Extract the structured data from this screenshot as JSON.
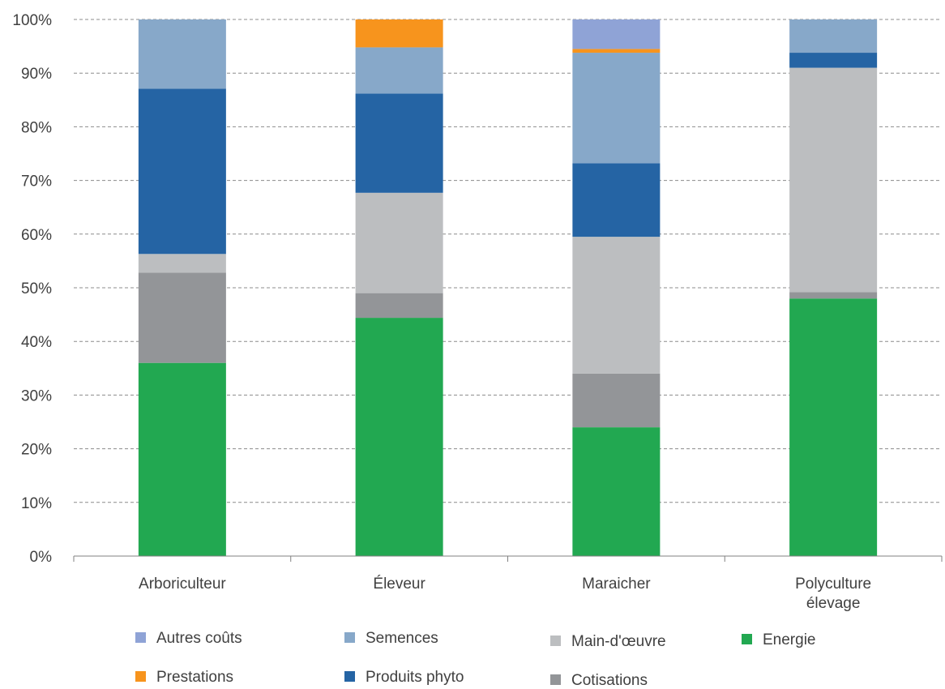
{
  "chart_data": {
    "type": "bar",
    "stacked": true,
    "categories": [
      [
        "Arboriculteur"
      ],
      [
        "Éleveur"
      ],
      [
        "Maraicher"
      ],
      [
        "Polyculture",
        "élevage"
      ]
    ],
    "yticks": [
      "0%",
      "10%",
      "20%",
      "30%",
      "40%",
      "50%",
      "60%",
      "70%",
      "80%",
      "90%",
      "100%"
    ],
    "ylim": [
      0,
      100
    ],
    "grid": true,
    "legend_position": "bottom",
    "series": [
      {
        "name": "Energie",
        "color": "#22a851",
        "values": [
          36,
          44.4,
          24,
          48
        ]
      },
      {
        "name": "Cotisations",
        "color": "#939598",
        "values": [
          16.8,
          4.6,
          10,
          1.2
        ]
      },
      {
        "name": "Main-d'œuvre",
        "color": "#bcbec0",
        "values": [
          3.5,
          18.7,
          25.5,
          41.8
        ]
      },
      {
        "name": "Produits phyto",
        "color": "#2564a4",
        "values": [
          30.8,
          18.5,
          13.7,
          2.8
        ]
      },
      {
        "name": "Semences",
        "color": "#87a8c9",
        "values": [
          12.9,
          8.6,
          20.6,
          6.2
        ]
      },
      {
        "name": "Prestations",
        "color": "#f7941d",
        "values": [
          0,
          5.2,
          0.7,
          0
        ]
      },
      {
        "name": "Autres coûts",
        "color": "#8fa3d6",
        "values": [
          0,
          0,
          5.5,
          0
        ]
      }
    ],
    "legend_order": [
      "Autres coûts",
      "Semences",
      "Main-d'œuvre",
      "Energie",
      "Prestations",
      "Produits phyto",
      "Cotisations"
    ]
  }
}
